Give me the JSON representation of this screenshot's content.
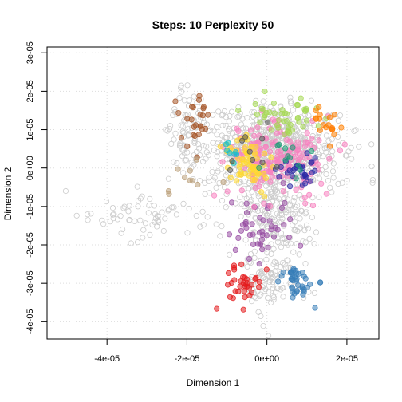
{
  "chart_data": {
    "type": "scatter",
    "title": "Steps: 10 Perplexity 50",
    "xlabel": "Dimension 1",
    "ylabel": "Dimension 2",
    "xlim": [
      -5.5e-05,
      2.8e-05
    ],
    "ylim": [
      -4.45e-05,
      3.15e-05
    ],
    "xticks": [
      -4e-05,
      -2e-05,
      0.0,
      2e-05
    ],
    "xtick_labels": [
      "-4e-05",
      "-2e-05",
      "0e+00",
      "2e-05"
    ],
    "yticks": [
      -4e-05,
      -3e-05,
      -2e-05,
      -1e-05,
      0.0,
      1e-05,
      2e-05,
      3e-05
    ],
    "ytick_labels": [
      "-4e-05",
      "-3e-05",
      "-2e-05",
      "-1e-05",
      "0e+00",
      "1e-05",
      "2e-05",
      "3e-05"
    ],
    "grid": true,
    "background_points": {
      "color": "#cccccc",
      "style": "open-circle",
      "seed": 7,
      "clusters": [
        {
          "cx": 1.5e-06,
          "cy": 4.5e-06,
          "sx": 8e-06,
          "sy": 5.5e-06,
          "n": 700
        },
        {
          "cx": 3e-06,
          "cy": -1.2e-05,
          "sx": 5e-06,
          "sy": 7e-06,
          "n": 200
        },
        {
          "cx": 1e-06,
          "cy": -3e-05,
          "sx": 4e-06,
          "sy": 4.5e-06,
          "n": 90
        },
        {
          "cx": -3.1e-05,
          "cy": -1.2e-05,
          "sx": 8.5e-06,
          "sy": 3.5e-06,
          "n": 70
        },
        {
          "cx": -2e-05,
          "cy": 9e-06,
          "sx": 3e-06,
          "sy": 6e-06,
          "n": 80
        }
      ]
    },
    "series": [
      {
        "color": "#E41A1C",
        "cx": -5.5e-06,
        "cy": -3.05e-05,
        "sx": 2.5e-06,
        "sy": 2.5e-06,
        "n": 35
      },
      {
        "color": "#377EB8",
        "cx": 7e-06,
        "cy": -2.95e-05,
        "sx": 2.8e-06,
        "sy": 2.5e-06,
        "n": 40
      },
      {
        "color": "#984EA3",
        "cx": -1e-06,
        "cy": -1.55e-05,
        "sx": 4.5e-06,
        "sy": 4.5e-06,
        "n": 45
      },
      {
        "color": "#F781BF",
        "cx": 2e-06,
        "cy": 2.5e-06,
        "sx": 6.5e-06,
        "sy": 4.5e-06,
        "n": 170
      },
      {
        "color": "#FFD92F",
        "cx": -4.5e-06,
        "cy": 2e-06,
        "sx": 3e-06,
        "sy": 3e-06,
        "n": 70
      },
      {
        "color": "#A6D854",
        "cx": 3.5e-06,
        "cy": 1.35e-05,
        "sx": 4.5e-06,
        "sy": 2.5e-06,
        "n": 45
      },
      {
        "color": "#FF7F00",
        "cx": 1.4e-05,
        "cy": 1.2e-05,
        "sx": 2e-06,
        "sy": 2e-06,
        "n": 18
      },
      {
        "color": "#A65628",
        "cx": -1.8e-05,
        "cy": 1.15e-05,
        "sx": 2.2e-06,
        "sy": 3.5e-06,
        "n": 25
      },
      {
        "color": "#2B2BA6",
        "cx": 8.5e-06,
        "cy": -1e-06,
        "sx": 3e-06,
        "sy": 2e-06,
        "n": 30
      },
      {
        "color": "#1B9E77",
        "cx": 5e-06,
        "cy": 3.5e-06,
        "sx": 4e-06,
        "sy": 3e-06,
        "n": 12
      },
      {
        "color": "#17BECF",
        "cx": -9e-06,
        "cy": 4.5e-06,
        "sx": 2e-06,
        "sy": 2e-06,
        "n": 8
      },
      {
        "color": "#555555",
        "cx": -4e-06,
        "cy": 4.5e-06,
        "sx": 4e-06,
        "sy": 3e-06,
        "n": 10
      },
      {
        "color": "#BBA07A",
        "cx": -2.1e-05,
        "cy": -1e-06,
        "sx": 4e-06,
        "sy": 4e-06,
        "n": 10
      }
    ]
  }
}
